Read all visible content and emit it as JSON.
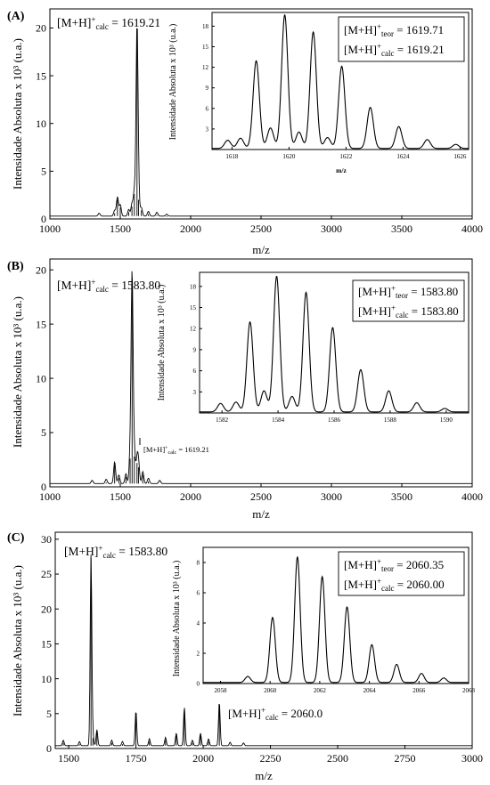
{
  "panels": [
    {
      "label": "(A)",
      "ylabel": "Intensidade Absoluta x 10³ (u.a.)",
      "xlabel": "m/z",
      "main_annotation": "[M+H]⁺calc = 1619.21",
      "inset": {
        "ylabel": "Intensidade Absoluta x 10³ (u.a.)",
        "xlabel": "m/z",
        "legend": [
          "[M+H]⁺teor = 1619.71",
          "[M+H]⁺calc = 1619.21"
        ]
      }
    },
    {
      "label": "(B)",
      "ylabel": "Intensidade Absoluta x 10³ (u.a.)",
      "xlabel": "m/z",
      "main_annotation": "[M+H]⁺calc = 1583.80",
      "secondary_annotation": "[M+H]⁺calc = 1619.21",
      "inset": {
        "ylabel": "Intensidade Absoluta x 10³ (u.a.)",
        "xlabel": "",
        "legend": [
          "[M+H]⁺teor = 1583.80",
          "[M+H]⁺calc = 1583.80"
        ]
      }
    },
    {
      "label": "(C)",
      "ylabel": "Intensidade Absoluta x 10³ (u.a.)",
      "xlabel": "m/z",
      "main_annotation": "[M+H]⁺calc = 1583.80",
      "secondary_annotation": "[M+H]⁺calc = 2060.0",
      "inset": {
        "ylabel": "Intensidade Absoluta x 10³ (u.a.)",
        "xlabel": "",
        "legend": [
          "[M+H]⁺teor = 2060.35",
          "[M+H]⁺calc = 2060.00"
        ]
      }
    }
  ],
  "chart_data": [
    {
      "type": "line",
      "panel": "A",
      "xlabel": "m/z",
      "ylabel": "Intensidade Absoluta x 10³ (u.a.)",
      "xlim": [
        1000,
        4000
      ],
      "ylim": [
        0,
        22
      ],
      "xticks": [
        1000,
        1500,
        2000,
        2500,
        3000,
        3500,
        4000
      ],
      "yticks": [
        0,
        5,
        10,
        15,
        20
      ],
      "baseline": 0.3,
      "peaks": [
        {
          "x": 1350,
          "y": 0.3
        },
        {
          "x": 1460,
          "y": 0.6
        },
        {
          "x": 1480,
          "y": 2.0
        },
        {
          "x": 1500,
          "y": 1.2
        },
        {
          "x": 1560,
          "y": 0.7
        },
        {
          "x": 1583,
          "y": 1.3
        },
        {
          "x": 1600,
          "y": 2.6
        },
        {
          "x": 1619,
          "y": 19.8
        },
        {
          "x": 1630,
          "y": 2.0
        },
        {
          "x": 1650,
          "y": 0.9
        },
        {
          "x": 1700,
          "y": 0.5
        },
        {
          "x": 1760,
          "y": 0.4
        },
        {
          "x": 1830,
          "y": 0.2
        }
      ]
    },
    {
      "type": "line",
      "panel": "A-inset",
      "xlabel": "m/z",
      "ylabel": "Intensidade Absoluta x 10³ (u.a.)",
      "xlim": [
        1617.3,
        1626.3
      ],
      "ylim": [
        0,
        20
      ],
      "xticks": [
        1618,
        1620,
        1622,
        1624,
        1626
      ],
      "yticks": [
        3,
        6,
        9,
        12,
        15,
        18
      ],
      "peaks": [
        {
          "x": 1617.85,
          "y": 1.2
        },
        {
          "x": 1618.3,
          "y": 1.5
        },
        {
          "x": 1618.85,
          "y": 12.8
        },
        {
          "x": 1619.35,
          "y": 3.0
        },
        {
          "x": 1619.85,
          "y": 19.5
        },
        {
          "x": 1620.35,
          "y": 2.4
        },
        {
          "x": 1620.85,
          "y": 17.0
        },
        {
          "x": 1621.35,
          "y": 1.6
        },
        {
          "x": 1621.85,
          "y": 12.0
        },
        {
          "x": 1622.85,
          "y": 6.0
        },
        {
          "x": 1623.85,
          "y": 3.2
        },
        {
          "x": 1624.85,
          "y": 1.3
        },
        {
          "x": 1625.85,
          "y": 0.6
        }
      ],
      "legend": [
        "[M+H]⁺teor = 1619.71",
        "[M+H]⁺calc = 1619.21"
      ]
    },
    {
      "type": "line",
      "panel": "B",
      "xlabel": "m/z",
      "ylabel": "Intensidade Absoluta x 10³ (u.a.)",
      "xlim": [
        1000,
        4000
      ],
      "ylim": [
        0,
        21
      ],
      "xticks": [
        1000,
        1500,
        2000,
        2500,
        3000,
        3500,
        4000
      ],
      "yticks": [
        0,
        5,
        10,
        15,
        20
      ],
      "baseline": 0.3,
      "peaks": [
        {
          "x": 1300,
          "y": 0.3
        },
        {
          "x": 1400,
          "y": 0.4
        },
        {
          "x": 1460,
          "y": 2.0
        },
        {
          "x": 1490,
          "y": 0.8
        },
        {
          "x": 1540,
          "y": 0.9
        },
        {
          "x": 1570,
          "y": 2.6
        },
        {
          "x": 1584,
          "y": 19.2
        },
        {
          "x": 1600,
          "y": 2.8
        },
        {
          "x": 1619,
          "y": 2.2
        },
        {
          "x": 1630,
          "y": 1.8
        },
        {
          "x": 1660,
          "y": 1.1
        },
        {
          "x": 1700,
          "y": 0.5
        },
        {
          "x": 1780,
          "y": 0.3
        }
      ]
    },
    {
      "type": "line",
      "panel": "B-inset",
      "xlabel": "",
      "ylabel": "Intensidade Absoluta x 10³ (u.a.)",
      "xlim": [
        1581.2,
        1590.8
      ],
      "ylim": [
        0,
        20
      ],
      "xticks": [
        1582,
        1584,
        1586,
        1588,
        1590
      ],
      "yticks": [
        3,
        6,
        9,
        12,
        15,
        18
      ],
      "peaks": [
        {
          "x": 1581.95,
          "y": 1.2
        },
        {
          "x": 1582.5,
          "y": 1.4
        },
        {
          "x": 1583.0,
          "y": 12.8
        },
        {
          "x": 1583.5,
          "y": 3.0
        },
        {
          "x": 1583.95,
          "y": 19.3
        },
        {
          "x": 1584.5,
          "y": 2.2
        },
        {
          "x": 1585.0,
          "y": 17.0
        },
        {
          "x": 1585.95,
          "y": 12.0
        },
        {
          "x": 1586.95,
          "y": 6.0
        },
        {
          "x": 1587.95,
          "y": 3.0
        },
        {
          "x": 1588.95,
          "y": 1.3
        },
        {
          "x": 1589.95,
          "y": 0.5
        }
      ],
      "legend": [
        "[M+H]⁺teor = 1583.80",
        "[M+H]⁺calc = 1583.80"
      ]
    },
    {
      "type": "line",
      "panel": "C",
      "xlabel": "m/z",
      "ylabel": "Intensidade Absoluta x 10³ (u.a.)",
      "xlim": [
        1450,
        3000
      ],
      "ylim": [
        0,
        31
      ],
      "xticks": [
        1500,
        1750,
        2000,
        2250,
        2500,
        2750,
        3000
      ],
      "yticks": [
        0,
        5,
        10,
        15,
        20,
        25,
        30
      ],
      "baseline": 0.4,
      "peaks": [
        {
          "x": 1480,
          "y": 0.8
        },
        {
          "x": 1540,
          "y": 0.6
        },
        {
          "x": 1583,
          "y": 27.3
        },
        {
          "x": 1590,
          "y": 1.5
        },
        {
          "x": 1605,
          "y": 2.3
        },
        {
          "x": 1660,
          "y": 0.8
        },
        {
          "x": 1700,
          "y": 0.6
        },
        {
          "x": 1750,
          "y": 5.0
        },
        {
          "x": 1800,
          "y": 1.0
        },
        {
          "x": 1860,
          "y": 1.2
        },
        {
          "x": 1900,
          "y": 1.8
        },
        {
          "x": 1930,
          "y": 5.5
        },
        {
          "x": 1960,
          "y": 0.8
        },
        {
          "x": 1990,
          "y": 1.8
        },
        {
          "x": 2020,
          "y": 1.0
        },
        {
          "x": 2060,
          "y": 6.3
        },
        {
          "x": 2100,
          "y": 0.5
        },
        {
          "x": 2150,
          "y": 0.4
        }
      ]
    },
    {
      "type": "line",
      "panel": "C-inset",
      "xlabel": "",
      "ylabel": "Intensidade Absoluta x 10³ (u.a.)",
      "xlim": [
        2057.3,
        2068.0
      ],
      "ylim": [
        0,
        9
      ],
      "xticks": [
        2058,
        2060,
        2062,
        2064,
        2066,
        2068
      ],
      "yticks": [
        0,
        2,
        4,
        6,
        8
      ],
      "peaks": [
        {
          "x": 2059.1,
          "y": 0.4
        },
        {
          "x": 2060.1,
          "y": 4.3
        },
        {
          "x": 2061.1,
          "y": 8.3
        },
        {
          "x": 2062.1,
          "y": 7.0
        },
        {
          "x": 2063.1,
          "y": 5.0
        },
        {
          "x": 2064.1,
          "y": 2.5
        },
        {
          "x": 2065.1,
          "y": 1.2
        },
        {
          "x": 2066.1,
          "y": 0.6
        },
        {
          "x": 2067.0,
          "y": 0.3
        }
      ],
      "legend": [
        "[M+H]⁺teor = 2060.35",
        "[M+H]⁺calc = 2060.00"
      ]
    }
  ]
}
